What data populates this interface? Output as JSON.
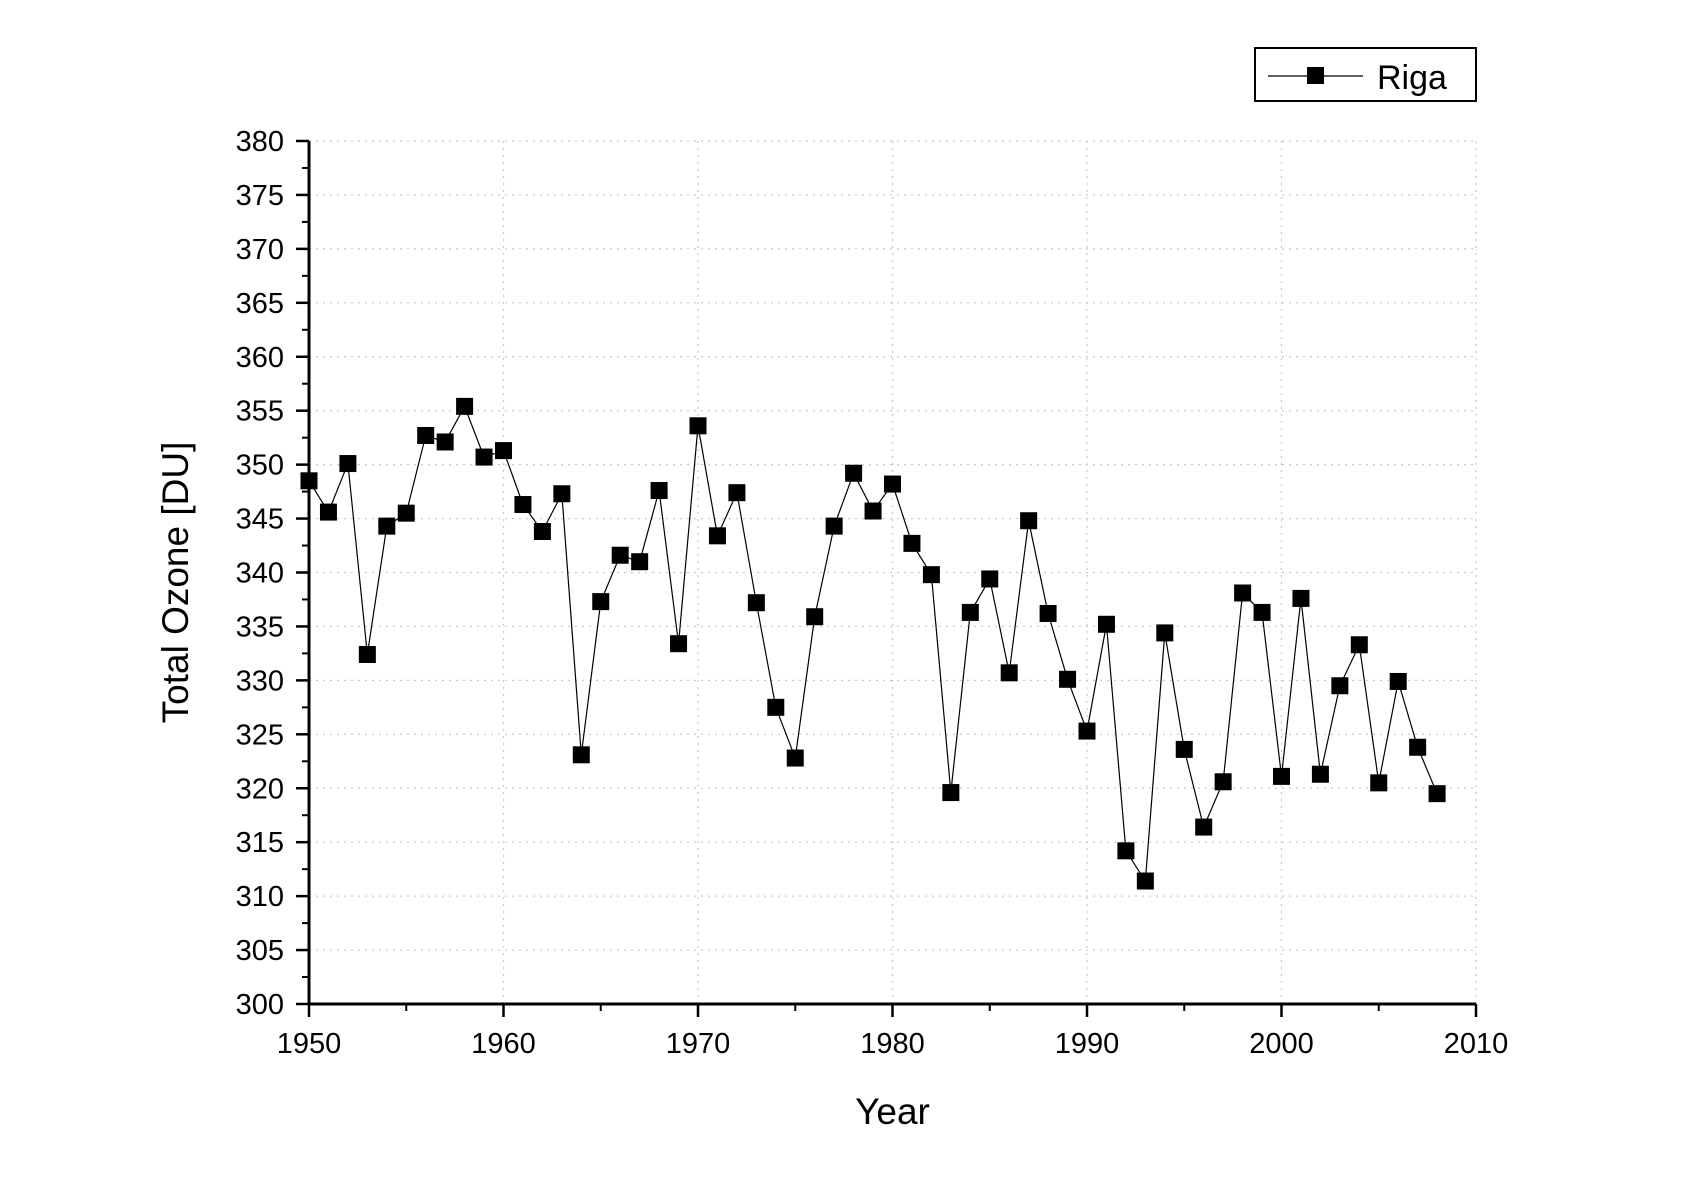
{
  "chart_data": {
    "type": "line",
    "xlabel": "Year",
    "ylabel": "Total Ozone [DU]",
    "xlim": [
      1950,
      2010
    ],
    "ylim": [
      300,
      380
    ],
    "xticks": [
      1950,
      1960,
      1970,
      1980,
      1990,
      2000,
      2010
    ],
    "xtick_labels": [
      "1950",
      "1960",
      "1970",
      "1980",
      "1990",
      "2000",
      "2010"
    ],
    "yticks": [
      300,
      305,
      310,
      315,
      320,
      325,
      330,
      335,
      340,
      345,
      350,
      355,
      360,
      365,
      370,
      375,
      380
    ],
    "ytick_labels": [
      "300",
      "305",
      "310",
      "315",
      "320",
      "325",
      "330",
      "335",
      "340",
      "345",
      "350",
      "355",
      "360",
      "365",
      "370",
      "375",
      "380"
    ],
    "grid": true,
    "legend_position": "top-right",
    "marker": "square",
    "color": "#000000",
    "series": [
      {
        "name": "Riga",
        "x": [
          1950,
          1951,
          1952,
          1953,
          1954,
          1955,
          1956,
          1957,
          1958,
          1959,
          1960,
          1961,
          1962,
          1963,
          1964,
          1965,
          1966,
          1967,
          1968,
          1969,
          1970,
          1971,
          1972,
          1973,
          1974,
          1975,
          1976,
          1977,
          1978,
          1979,
          1980,
          1981,
          1982,
          1983,
          1984,
          1985,
          1986,
          1987,
          1988,
          1989,
          1990,
          1991,
          1992,
          1993,
          1994,
          1995,
          1996,
          1997,
          1998,
          1999,
          2000,
          2001,
          2002,
          2003,
          2004,
          2005,
          2006,
          2007,
          2008
        ],
        "y": [
          348.5,
          345.6,
          350.1,
          332.4,
          344.3,
          345.5,
          352.7,
          352.1,
          355.4,
          350.7,
          351.3,
          346.3,
          343.8,
          347.3,
          323.1,
          337.3,
          341.6,
          341.0,
          347.6,
          333.4,
          353.6,
          343.4,
          347.4,
          337.2,
          327.5,
          322.8,
          335.9,
          344.3,
          349.2,
          345.7,
          348.2,
          342.7,
          339.8,
          319.6,
          336.3,
          339.4,
          330.7,
          344.8,
          336.2,
          330.1,
          325.3,
          335.2,
          314.2,
          311.4,
          334.4,
          323.6,
          316.4,
          320.6,
          338.1,
          336.3,
          321.1,
          337.6,
          321.3,
          329.5,
          333.3,
          320.5,
          329.9,
          323.8,
          319.5
        ]
      }
    ]
  }
}
